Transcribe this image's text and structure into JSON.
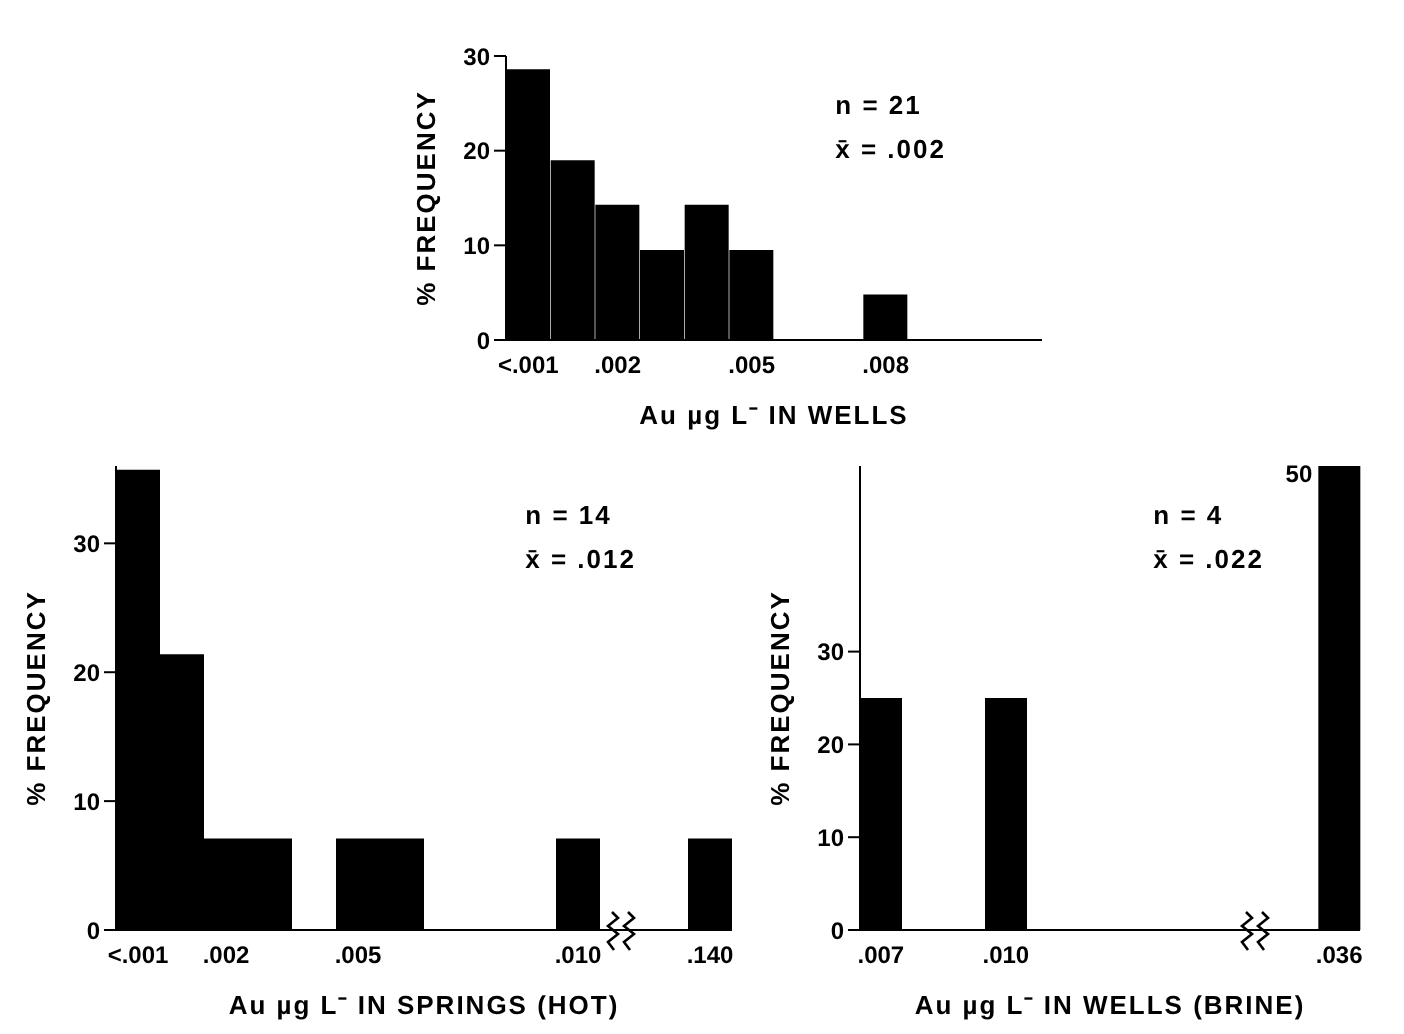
{
  "chart_data": [
    {
      "type": "bar",
      "xlabel": "Au µg L⁻ IN WELLS",
      "ylabel": "% FREQUENCY",
      "annotations": [
        "n = 21",
        "x̄ = .002"
      ],
      "categories": [
        "<.001",
        null,
        ".002",
        null,
        null,
        ".005",
        null,
        null,
        ".008",
        null,
        null,
        null
      ],
      "values": [
        28.6,
        19,
        14.3,
        9.5,
        14.3,
        9.5,
        0,
        0,
        4.8,
        0,
        0,
        0
      ],
      "color": "#000000",
      "ylim": [
        0,
        30
      ],
      "yticks": [
        0,
        10,
        20,
        30
      ],
      "grid": false
    },
    {
      "type": "bar",
      "xlabel": "Au µg L⁻ IN SPRINGS (HOT)",
      "ylabel": "% FREQUENCY",
      "annotations": [
        "n = 14",
        "x̄ = .012"
      ],
      "categories": [
        "<.001",
        null,
        ".002",
        null,
        null,
        ".005",
        null,
        null,
        null,
        null,
        ".010",
        null,
        null,
        ".140"
      ],
      "values": [
        35.7,
        21.4,
        7.1,
        7.1,
        0,
        7.1,
        7.1,
        0,
        0,
        0,
        7.1,
        0,
        0,
        7.1
      ],
      "color": "#000000",
      "ylim": [
        0,
        36
      ],
      "yticks": [
        0,
        10,
        20,
        30
      ],
      "grid": false
    },
    {
      "type": "bar",
      "xlabel": "Au µg L⁻ IN WELLS (BRINE)",
      "ylabel": "% FREQUENCY",
      "annotations": [
        "n = 4",
        "x̄ = .022"
      ],
      "categories": [
        ".007",
        null,
        null,
        ".010",
        null,
        null,
        null,
        null,
        null,
        null,
        null,
        ".036"
      ],
      "values": [
        25,
        0,
        0,
        25,
        0,
        0,
        0,
        0,
        0,
        0,
        0,
        50
      ],
      "color": "#000000",
      "value_labels": [
        null,
        null,
        null,
        null,
        null,
        null,
        null,
        null,
        null,
        null,
        null,
        "50"
      ],
      "ylim": [
        0,
        50
      ],
      "yticks": [
        0,
        10,
        20,
        30
      ],
      "grid": false
    }
  ]
}
